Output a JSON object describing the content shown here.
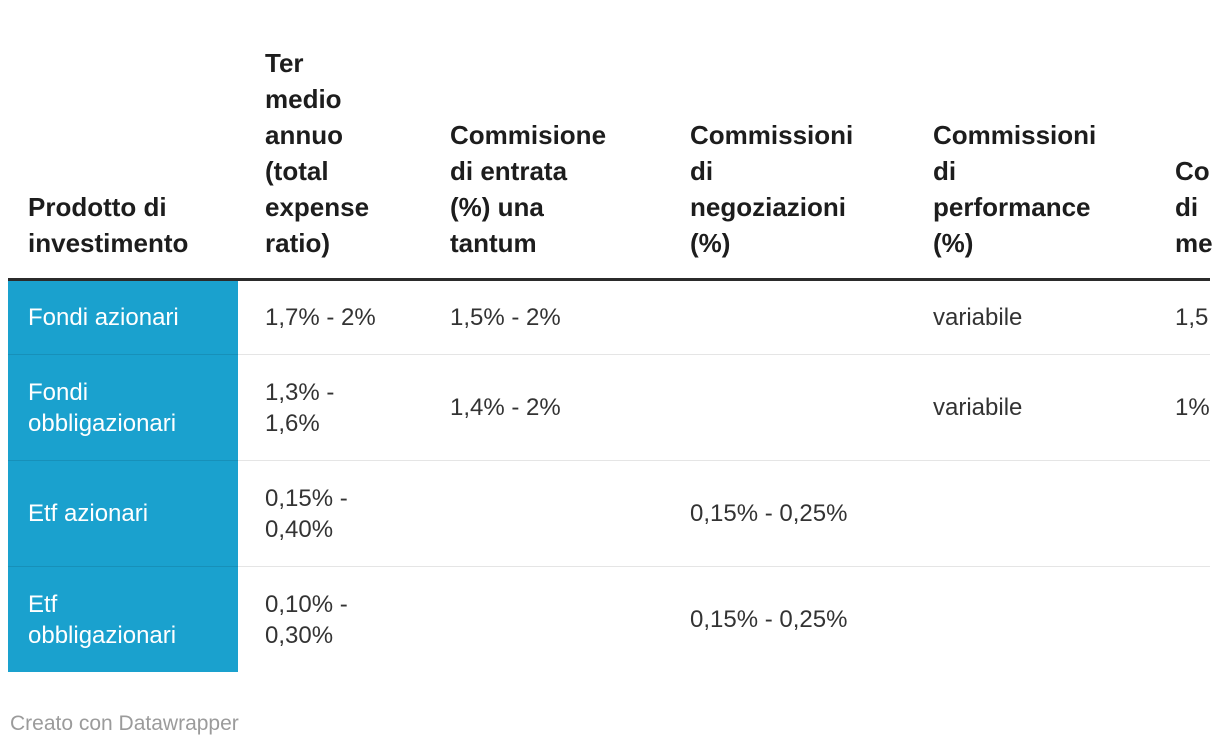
{
  "chart_data": {
    "type": "table",
    "title": "",
    "columns": [
      "Prodotto di investimento",
      "Ter medio annuo (total expense ratio)",
      "Commisione di entrata (%) una tantum",
      "Commissioni di negoziazioni (%)",
      "Commissioni di performance (%)",
      "Co di me"
    ],
    "rows": [
      [
        "Fondi azionari",
        "1,7% - 2%",
        "1,5% - 2%",
        "",
        "variabile",
        "1,5"
      ],
      [
        "Fondi obbligazionari",
        "1,3% - 1,6%",
        "1,4% - 2%",
        "",
        "variabile",
        "1%"
      ],
      [
        "Etf azionari",
        "0,15% - 0,40%",
        "",
        "0,15% - 0,25%",
        "",
        ""
      ],
      [
        "Etf obbligazionari",
        "0,10% - 0,30%",
        "",
        "0,15% - 0,25%",
        "",
        ""
      ]
    ],
    "notes": "last column truncated at right edge of viewport"
  },
  "table": {
    "headers": {
      "product": "Prodotto di\ninvestimento",
      "ter": "Ter\nmedio\nannuo\n(total\nexpense\nratio)",
      "entrata": "Commisione\ndi entrata\n(%) una\ntantum",
      "negoziazioni": "Commissioni\ndi\nnegoziazioni\n(%)",
      "performance": "Commissioni\ndi\nperformance\n(%)",
      "truncated": "Co\ndi\nme"
    },
    "rows": [
      {
        "product": "Fondi azionari",
        "ter": "1,7% - 2%",
        "entrata": "1,5% - 2%",
        "negoziazioni": "",
        "performance": "variabile",
        "truncated": "1,5"
      },
      {
        "product": "Fondi\nobbligazionari",
        "ter": "1,3% -\n1,6%",
        "entrata": "1,4% - 2%",
        "negoziazioni": "",
        "performance": "variabile",
        "truncated": "1%"
      },
      {
        "product": "Etf azionari",
        "ter": "0,15% -\n0,40%",
        "entrata": "",
        "negoziazioni": "0,15% - 0,25%",
        "performance": "",
        "truncated": ""
      },
      {
        "product": "Etf\nobbligazionari",
        "ter": "0,10% -\n0,30%",
        "entrata": "",
        "negoziazioni": "0,15% - 0,25%",
        "performance": "",
        "truncated": ""
      }
    ]
  },
  "footer": {
    "credit": "Creato con Datawrapper"
  },
  "colors": {
    "accent_blue": "#1aa1ce",
    "header_rule": "#2b2b2b",
    "row_separator": "#e6e6e6",
    "header_text": "#1d1d1d",
    "body_text": "#333333",
    "row_label_text": "#ffffff",
    "credit_text": "#9b9b9b",
    "background": "#ffffff"
  }
}
